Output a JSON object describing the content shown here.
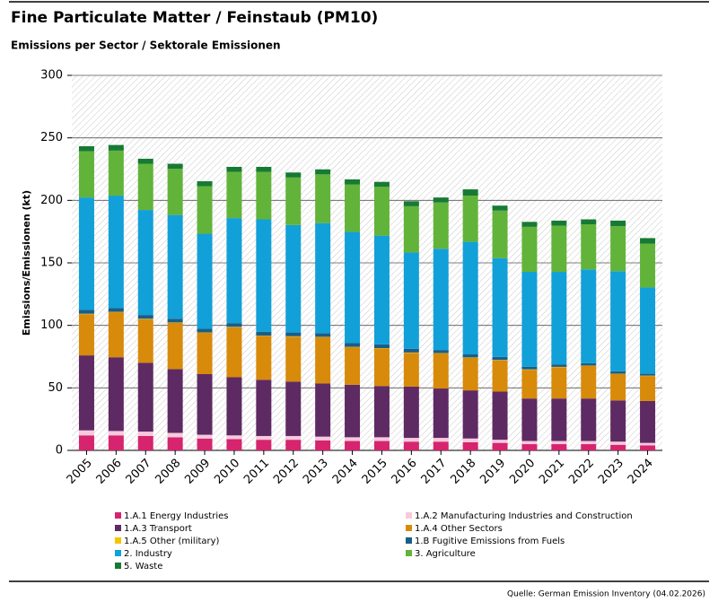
{
  "chart_data": {
    "type": "stacked_bar",
    "title": "Fine Particulate Matter / Feinstaub (PM10)",
    "subtitle": "Emissions per Sector / Sektorale Emissionen",
    "y_label": "Emissions/Emissionen (kt)",
    "source": "Quelle: German Emission Inventory (04.02.2026)",
    "categories": [
      "2005",
      "2006",
      "2007",
      "2008",
      "2009",
      "2010",
      "2011",
      "2012",
      "2013",
      "2014",
      "2015",
      "2016",
      "2017",
      "2018",
      "2019",
      "2020",
      "2021",
      "2022",
      "2023",
      "2024"
    ],
    "ylim": [
      0,
      300
    ],
    "yticks": [
      0,
      50,
      100,
      150,
      200,
      250,
      300
    ],
    "grid": true,
    "series": [
      {
        "name": "1.A.1 Energy Industries",
        "color": "#d6246e",
        "values": [
          12,
          12,
          11.5,
          10.5,
          9.5,
          9,
          8.5,
          8.5,
          8,
          7.5,
          7.5,
          7,
          7,
          6.5,
          6,
          5,
          5,
          5,
          4.5,
          4
        ]
      },
      {
        "name": "1.A.2 Manufacturing Industries and Construction",
        "color": "#f7c9dc",
        "values": [
          4,
          3.5,
          3.5,
          3.5,
          3,
          3,
          3,
          3,
          3,
          3,
          3,
          3,
          3,
          3,
          2.5,
          2.5,
          2.5,
          2.5,
          2.5,
          2
        ]
      },
      {
        "name": "1.A.3 Transport",
        "color": "#5e2a63",
        "values": [
          60,
          59,
          55,
          51,
          48.5,
          46.5,
          45,
          43.5,
          42.5,
          42,
          41,
          41,
          39.5,
          38.5,
          38.5,
          34,
          34,
          34,
          33,
          33.5
        ]
      },
      {
        "name": "1.A.4 Other Sectors",
        "color": "#d88a0a",
        "values": [
          33,
          36,
          35,
          37,
          33,
          40,
          35,
          36,
          37,
          30,
          30,
          27,
          28,
          26,
          25,
          23,
          25,
          26,
          21,
          20
        ]
      },
      {
        "name": "1.A.5 Other (military)",
        "color": "#f5c400",
        "values": [
          0.3,
          0.3,
          0.3,
          0.3,
          0.3,
          0.3,
          0.3,
          0.3,
          0.3,
          0.3,
          0.3,
          0.3,
          0.3,
          0.3,
          0.3,
          0.3,
          0.3,
          0.3,
          0.3,
          0.3
        ]
      },
      {
        "name": "1.B Fugitive Emissions from Fuels",
        "color": "#1a5e86",
        "values": [
          3,
          3,
          3,
          3,
          3,
          3,
          3,
          3,
          3,
          3,
          3,
          3,
          2.5,
          2.5,
          2.5,
          2,
          2,
          2,
          2,
          1.5
        ]
      },
      {
        "name": "2. Industry",
        "color": "#12a0d8",
        "values": [
          90,
          90,
          84,
          83,
          76,
          84,
          90,
          86,
          88,
          89,
          87,
          77,
          81,
          90,
          79,
          76,
          74,
          75,
          80,
          69
        ]
      },
      {
        "name": "3. Agriculture",
        "color": "#62b33a",
        "values": [
          37,
          36,
          37,
          37,
          38,
          37,
          38,
          38,
          39,
          38,
          39,
          37,
          37,
          37,
          38,
          36,
          37,
          36,
          36,
          35
        ]
      },
      {
        "name": "5. Waste",
        "color": "#177a34",
        "values": [
          4,
          4.5,
          4,
          4,
          4,
          4,
          4,
          4,
          4,
          4,
          4,
          4,
          4,
          5,
          4,
          4,
          4,
          4,
          4.5,
          4.5
        ]
      }
    ]
  }
}
